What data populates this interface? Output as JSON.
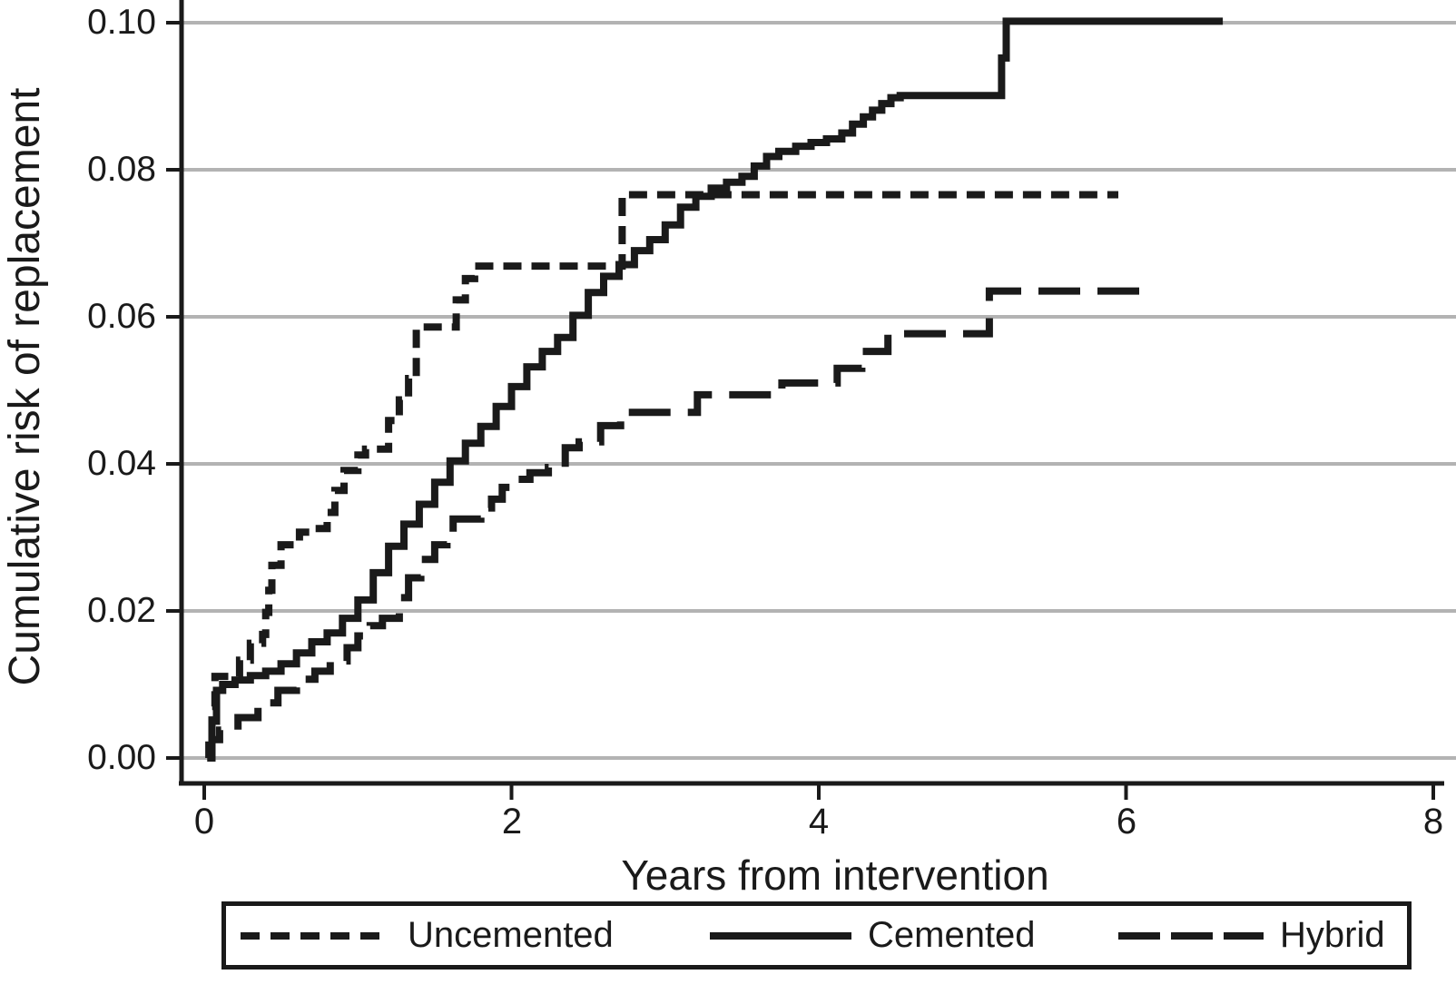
{
  "figure": {
    "background": "#ffffff",
    "line_color": "#1a1a1a",
    "grid_color": "#b3b3b3"
  },
  "chart_data": {
    "type": "line",
    "subtype": "step-after cumulative incidence curves (Kaplan-Meier style)",
    "title": "",
    "xlabel": "Years from intervention",
    "ylabel": "Cumulative risk of replacement",
    "xlim": [
      -0.15,
      8.15
    ],
    "ylim": [
      0.0,
      0.103
    ],
    "x_ticks": [
      0,
      2,
      4,
      6,
      8
    ],
    "x_tick_labels": [
      "0",
      "2",
      "4",
      "6",
      "8"
    ],
    "y_ticks": [
      0.1,
      0.08,
      0.06,
      0.04,
      0.02,
      0.0
    ],
    "y_tick_labels": [
      "0.10",
      "0.08",
      "0.06",
      "0.04",
      "0.02",
      "0.00"
    ],
    "grid": "horizontal gridlines at each y tick",
    "legend_position": "bottom",
    "series": [
      {
        "name": "Uncemented",
        "line_style": "short-dash",
        "color": "#1a1a1a",
        "dash": "20 11",
        "legend_dash": "21 12",
        "end_t": 5.95,
        "points": [
          [
            0.02,
            0.0
          ],
          [
            0.03,
            0.003
          ],
          [
            0.05,
            0.007
          ],
          [
            0.07,
            0.0111
          ],
          [
            0.23,
            0.0133
          ],
          [
            0.3,
            0.0156
          ],
          [
            0.38,
            0.0168
          ],
          [
            0.4,
            0.0198
          ],
          [
            0.42,
            0.0228
          ],
          [
            0.44,
            0.0262
          ],
          [
            0.5,
            0.029
          ],
          [
            0.62,
            0.0307
          ],
          [
            0.72,
            0.0312
          ],
          [
            0.8,
            0.0334
          ],
          [
            0.85,
            0.0364
          ],
          [
            0.91,
            0.0391
          ],
          [
            1.0,
            0.0412
          ],
          [
            1.05,
            0.042
          ],
          [
            1.2,
            0.0459
          ],
          [
            1.27,
            0.0487
          ],
          [
            1.33,
            0.0516
          ],
          [
            1.38,
            0.0586
          ],
          [
            1.64,
            0.0623
          ],
          [
            1.7,
            0.0652
          ],
          [
            1.76,
            0.0669
          ],
          [
            2.72,
            0.0766
          ]
        ]
      },
      {
        "name": "Cemented",
        "line_style": "solid",
        "color": "#1a1a1a",
        "dash": "",
        "legend_dash": "",
        "end_t": 6.63,
        "points": [
          [
            0.02,
            0.0
          ],
          [
            0.05,
            0.005
          ],
          [
            0.08,
            0.0092
          ],
          [
            0.12,
            0.01
          ],
          [
            0.2,
            0.0106
          ],
          [
            0.3,
            0.0112
          ],
          [
            0.4,
            0.0118
          ],
          [
            0.5,
            0.0128
          ],
          [
            0.6,
            0.0143
          ],
          [
            0.7,
            0.0158
          ],
          [
            0.8,
            0.017
          ],
          [
            0.9,
            0.019
          ],
          [
            1.0,
            0.0215
          ],
          [
            1.1,
            0.0252
          ],
          [
            1.2,
            0.0288
          ],
          [
            1.3,
            0.0318
          ],
          [
            1.4,
            0.0345
          ],
          [
            1.5,
            0.0375
          ],
          [
            1.6,
            0.0404
          ],
          [
            1.7,
            0.0428
          ],
          [
            1.8,
            0.0451
          ],
          [
            1.9,
            0.0478
          ],
          [
            2.0,
            0.0505
          ],
          [
            2.1,
            0.0532
          ],
          [
            2.2,
            0.0553
          ],
          [
            2.3,
            0.0572
          ],
          [
            2.4,
            0.0602
          ],
          [
            2.5,
            0.0633
          ],
          [
            2.6,
            0.0655
          ],
          [
            2.7,
            0.0671
          ],
          [
            2.8,
            0.069
          ],
          [
            2.9,
            0.0705
          ],
          [
            3.0,
            0.0725
          ],
          [
            3.1,
            0.0749
          ],
          [
            3.2,
            0.0764
          ],
          [
            3.3,
            0.0775
          ],
          [
            3.4,
            0.0783
          ],
          [
            3.5,
            0.0791
          ],
          [
            3.58,
            0.0805
          ],
          [
            3.66,
            0.0818
          ],
          [
            3.74,
            0.0825
          ],
          [
            3.85,
            0.0832
          ],
          [
            3.95,
            0.0837
          ],
          [
            4.05,
            0.0842
          ],
          [
            4.15,
            0.085
          ],
          [
            4.22,
            0.0862
          ],
          [
            4.29,
            0.0872
          ],
          [
            4.35,
            0.0881
          ],
          [
            4.41,
            0.089
          ],
          [
            4.47,
            0.0898
          ],
          [
            4.53,
            0.0901
          ],
          [
            5.19,
            0.0952
          ],
          [
            5.22,
            0.1002
          ]
        ]
      },
      {
        "name": "Hybrid",
        "line_style": "long-dash",
        "color": "#1a1a1a",
        "dash": "46 19",
        "legend_dash": "46 12",
        "end_t": 6.19,
        "points": [
          [
            0.02,
            0.0
          ],
          [
            0.05,
            0.0025
          ],
          [
            0.1,
            0.0038
          ],
          [
            0.22,
            0.0055
          ],
          [
            0.35,
            0.0075
          ],
          [
            0.48,
            0.0092
          ],
          [
            0.6,
            0.0107
          ],
          [
            0.72,
            0.0118
          ],
          [
            0.82,
            0.0132
          ],
          [
            0.93,
            0.015
          ],
          [
            1.0,
            0.0166
          ],
          [
            1.08,
            0.018
          ],
          [
            1.16,
            0.019
          ],
          [
            1.27,
            0.0218
          ],
          [
            1.33,
            0.0245
          ],
          [
            1.41,
            0.027
          ],
          [
            1.5,
            0.029
          ],
          [
            1.58,
            0.0305
          ],
          [
            1.62,
            0.0325
          ],
          [
            1.8,
            0.034
          ],
          [
            1.87,
            0.0352
          ],
          [
            1.94,
            0.0368
          ],
          [
            2.02,
            0.0379
          ],
          [
            2.12,
            0.0388
          ],
          [
            2.24,
            0.0395
          ],
          [
            2.35,
            0.0422
          ],
          [
            2.44,
            0.043
          ],
          [
            2.58,
            0.0452
          ],
          [
            2.71,
            0.047
          ],
          [
            3.21,
            0.0494
          ],
          [
            3.76,
            0.051
          ],
          [
            4.12,
            0.053
          ],
          [
            4.28,
            0.0553
          ],
          [
            4.45,
            0.0577
          ],
          [
            5.11,
            0.0635
          ]
        ]
      }
    ]
  }
}
